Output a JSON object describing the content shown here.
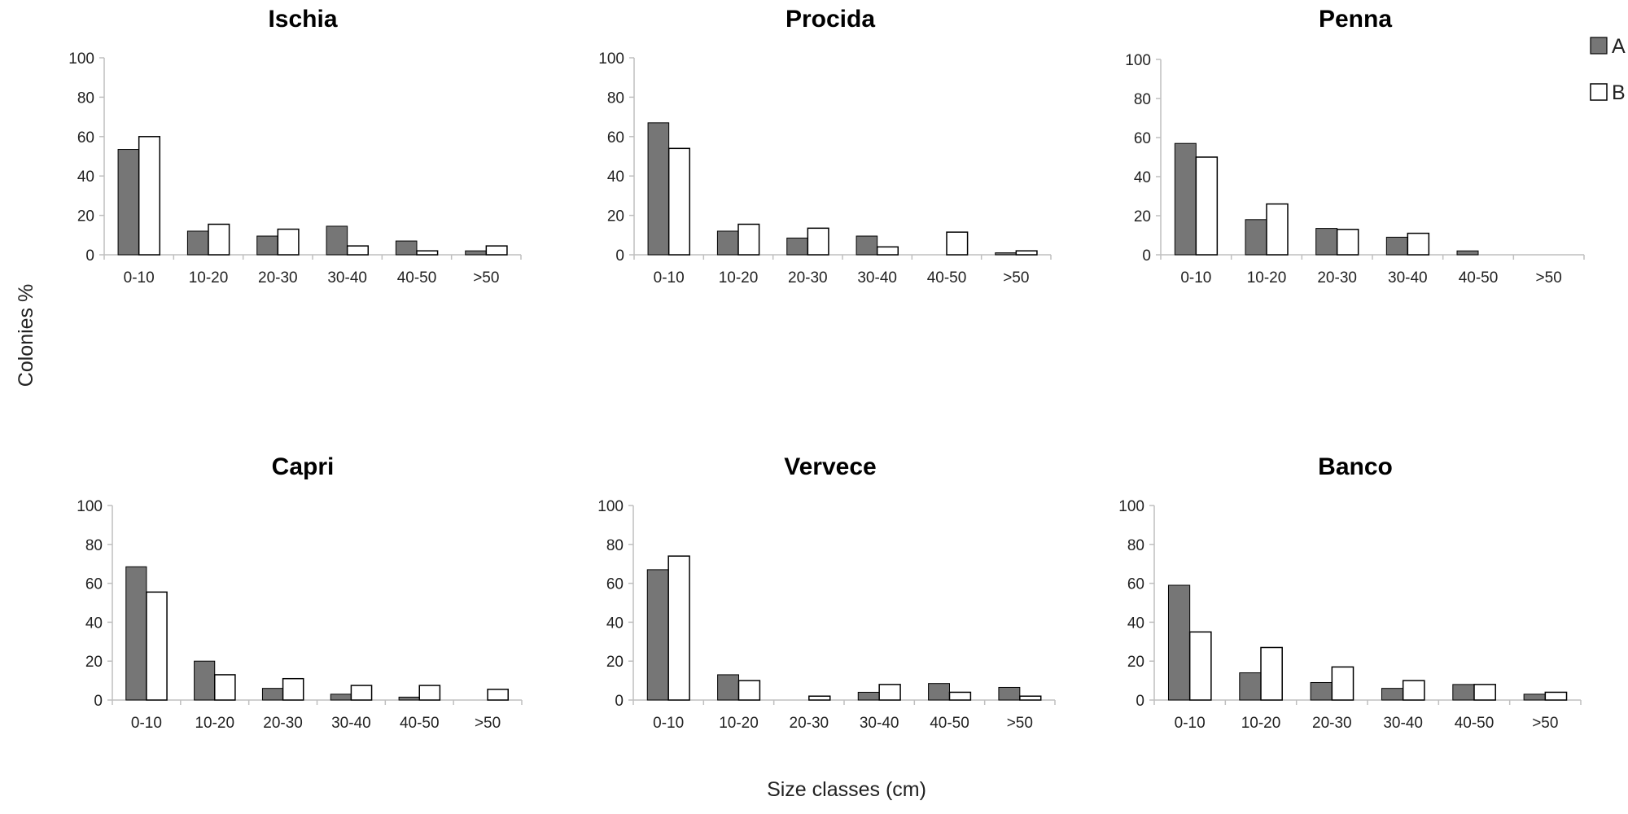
{
  "figure": {
    "ylabel": "Colonies %",
    "xlabel": "Size classes (cm)"
  },
  "colors": {
    "A": "#767676",
    "B": "#ffffff",
    "axis": "#bfbfbf",
    "bar_edge": "#000000"
  },
  "chart_data": [
    {
      "type": "bar",
      "title": "Ischia",
      "categories": [
        "0-10",
        "10-20",
        "20-30",
        "30-40",
        "40-50",
        ">50"
      ],
      "series": [
        {
          "name": "A",
          "values": [
            53.5,
            12,
            9.5,
            14.5,
            7,
            2
          ]
        },
        {
          "name": "B",
          "values": [
            60,
            15.5,
            13,
            4.5,
            2,
            4.5
          ]
        }
      ],
      "ylim": [
        0,
        100
      ],
      "yticks": [
        0,
        20,
        40,
        60,
        80,
        100
      ]
    },
    {
      "type": "bar",
      "title": "Procida",
      "categories": [
        "0-10",
        "10-20",
        "20-30",
        "30-40",
        "40-50",
        ">50"
      ],
      "series": [
        {
          "name": "A",
          "values": [
            67,
            12,
            8.5,
            9.5,
            0,
            1
          ]
        },
        {
          "name": "B",
          "values": [
            54,
            15.5,
            13.5,
            4,
            11.5,
            2
          ]
        }
      ],
      "ylim": [
        0,
        100
      ],
      "yticks": [
        0,
        20,
        40,
        60,
        80,
        100
      ]
    },
    {
      "type": "bar",
      "title": "Penna",
      "categories": [
        "0-10",
        "10-20",
        "20-30",
        "30-40",
        "40-50",
        ">50"
      ],
      "series": [
        {
          "name": "A",
          "values": [
            57,
            18,
            13.5,
            9,
            2,
            0
          ]
        },
        {
          "name": "B",
          "values": [
            50,
            26,
            13,
            11,
            0,
            0
          ]
        }
      ],
      "ylim": [
        0,
        100
      ],
      "yticks": [
        0,
        20,
        40,
        60,
        80,
        100
      ]
    },
    {
      "type": "bar",
      "title": "Capri",
      "categories": [
        "0-10",
        "10-20",
        "20-30",
        "30-40",
        "40-50",
        ">50"
      ],
      "series": [
        {
          "name": "A",
          "values": [
            68.5,
            20,
            6,
            3,
            1.5,
            0
          ]
        },
        {
          "name": "B",
          "values": [
            55.5,
            13,
            11,
            7.5,
            7.5,
            5.5
          ]
        }
      ],
      "ylim": [
        0,
        100
      ],
      "yticks": [
        0,
        20,
        40,
        60,
        80,
        100
      ]
    },
    {
      "type": "bar",
      "title": "Vervece",
      "categories": [
        "0-10",
        "10-20",
        "20-30",
        "30-40",
        "40-50",
        ">50"
      ],
      "series": [
        {
          "name": "A",
          "values": [
            67,
            13,
            0,
            4,
            8.5,
            6.5
          ]
        },
        {
          "name": "B",
          "values": [
            74,
            10,
            2,
            8,
            4,
            2
          ]
        }
      ],
      "ylim": [
        0,
        100
      ],
      "yticks": [
        0,
        20,
        40,
        60,
        80,
        100
      ]
    },
    {
      "type": "bar",
      "title": "Banco",
      "categories": [
        "0-10",
        "10-20",
        "20-30",
        "30-40",
        "40-50",
        ">50"
      ],
      "series": [
        {
          "name": "A",
          "values": [
            59,
            14,
            9,
            6,
            8,
            3
          ]
        },
        {
          "name": "B",
          "values": [
            35,
            27,
            17,
            10,
            8,
            4
          ]
        }
      ],
      "ylim": [
        0,
        100
      ],
      "yticks": [
        0,
        20,
        40,
        60,
        80,
        100
      ]
    }
  ]
}
